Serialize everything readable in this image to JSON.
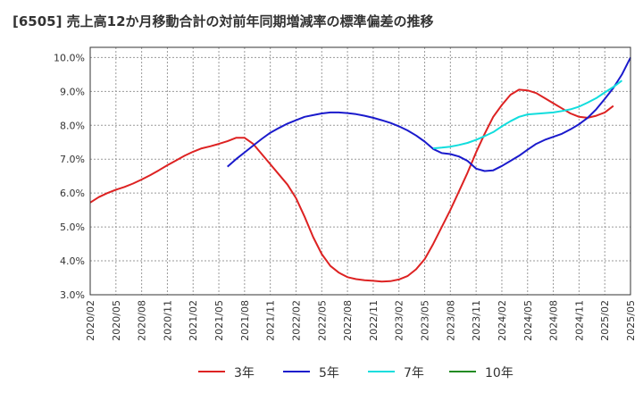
{
  "chart_data": {
    "type": "line",
    "title": "[6505]  売上高12か月移動合計の対前年同期増減率の標準偏差の推移",
    "xlabel": "",
    "ylabel": "",
    "ylim": [
      3.0,
      10.3
    ],
    "y_ticks": [
      "3.0%",
      "4.0%",
      "5.0%",
      "6.0%",
      "7.0%",
      "8.0%",
      "9.0%",
      "10.0%"
    ],
    "y_tick_values": [
      3,
      4,
      5,
      6,
      7,
      8,
      9,
      10
    ],
    "x_ticks": [
      "2020/02",
      "2020/05",
      "2020/08",
      "2020/11",
      "2021/02",
      "2021/05",
      "2021/08",
      "2021/11",
      "2022/02",
      "2022/05",
      "2022/08",
      "2022/11",
      "2023/02",
      "2023/05",
      "2023/08",
      "2023/11",
      "2024/02",
      "2024/05",
      "2024/08",
      "2024/11",
      "2025/02",
      "2025/05"
    ],
    "grid": true,
    "legend_position": "bottom",
    "series": [
      {
        "name": "3年",
        "color": "#dd2222",
        "points": [
          [
            "2020/02",
            5.72
          ],
          [
            "2020/03",
            5.88
          ],
          [
            "2020/04",
            6.0
          ],
          [
            "2020/05",
            6.1
          ],
          [
            "2020/06",
            6.18
          ],
          [
            "2020/07",
            6.28
          ],
          [
            "2020/08",
            6.4
          ],
          [
            "2020/09",
            6.53
          ],
          [
            "2020/10",
            6.67
          ],
          [
            "2020/11",
            6.82
          ],
          [
            "2020/12",
            6.96
          ],
          [
            "2021/01",
            7.1
          ],
          [
            "2021/02",
            7.22
          ],
          [
            "2021/03",
            7.32
          ],
          [
            "2021/04",
            7.38
          ],
          [
            "2021/05",
            7.45
          ],
          [
            "2021/06",
            7.53
          ],
          [
            "2021/07",
            7.63
          ],
          [
            "2021/08",
            7.63
          ],
          [
            "2021/09",
            7.45
          ],
          [
            "2021/10",
            7.15
          ],
          [
            "2021/11",
            6.85
          ],
          [
            "2021/12",
            6.55
          ],
          [
            "2022/01",
            6.25
          ],
          [
            "2022/02",
            5.85
          ],
          [
            "2022/03",
            5.3
          ],
          [
            "2022/04",
            4.7
          ],
          [
            "2022/05",
            4.2
          ],
          [
            "2022/06",
            3.85
          ],
          [
            "2022/07",
            3.65
          ],
          [
            "2022/08",
            3.52
          ],
          [
            "2022/09",
            3.46
          ],
          [
            "2022/10",
            3.43
          ],
          [
            "2022/11",
            3.41
          ],
          [
            "2022/12",
            3.39
          ],
          [
            "2023/01",
            3.4
          ],
          [
            "2023/02",
            3.45
          ],
          [
            "2023/03",
            3.55
          ],
          [
            "2023/04",
            3.75
          ],
          [
            "2023/05",
            4.05
          ],
          [
            "2023/06",
            4.5
          ],
          [
            "2023/07",
            5.0
          ],
          [
            "2023/08",
            5.5
          ],
          [
            "2023/09",
            6.05
          ],
          [
            "2023/10",
            6.6
          ],
          [
            "2023/11",
            7.2
          ],
          [
            "2023/12",
            7.75
          ],
          [
            "2024/01",
            8.25
          ],
          [
            "2024/02",
            8.6
          ],
          [
            "2024/03",
            8.9
          ],
          [
            "2024/04",
            9.05
          ],
          [
            "2024/05",
            9.03
          ],
          [
            "2024/06",
            8.95
          ],
          [
            "2024/07",
            8.8
          ],
          [
            "2024/08",
            8.65
          ],
          [
            "2024/09",
            8.5
          ],
          [
            "2024/10",
            8.35
          ],
          [
            "2024/11",
            8.25
          ],
          [
            "2024/12",
            8.22
          ],
          [
            "2025/01",
            8.28
          ],
          [
            "2025/02",
            8.38
          ],
          [
            "2025/03",
            8.57
          ]
        ]
      },
      {
        "name": "5年",
        "color": "#1a1acc",
        "points": [
          [
            "2021/06",
            6.78
          ],
          [
            "2021/07",
            7.0
          ],
          [
            "2021/08",
            7.2
          ],
          [
            "2021/09",
            7.4
          ],
          [
            "2021/10",
            7.6
          ],
          [
            "2021/11",
            7.78
          ],
          [
            "2021/12",
            7.92
          ],
          [
            "2022/01",
            8.05
          ],
          [
            "2022/02",
            8.15
          ],
          [
            "2022/03",
            8.25
          ],
          [
            "2022/04",
            8.3
          ],
          [
            "2022/05",
            8.35
          ],
          [
            "2022/06",
            8.38
          ],
          [
            "2022/07",
            8.38
          ],
          [
            "2022/08",
            8.36
          ],
          [
            "2022/09",
            8.33
          ],
          [
            "2022/10",
            8.28
          ],
          [
            "2022/11",
            8.22
          ],
          [
            "2022/12",
            8.15
          ],
          [
            "2023/01",
            8.07
          ],
          [
            "2023/02",
            7.97
          ],
          [
            "2023/03",
            7.85
          ],
          [
            "2023/04",
            7.7
          ],
          [
            "2023/05",
            7.52
          ],
          [
            "2023/06",
            7.3
          ],
          [
            "2023/07",
            7.18
          ],
          [
            "2023/08",
            7.15
          ],
          [
            "2023/09",
            7.08
          ],
          [
            "2023/10",
            6.95
          ],
          [
            "2023/11",
            6.72
          ],
          [
            "2023/12",
            6.65
          ],
          [
            "2024/01",
            6.67
          ],
          [
            "2024/02",
            6.8
          ],
          [
            "2024/03",
            6.95
          ],
          [
            "2024/04",
            7.1
          ],
          [
            "2024/05",
            7.28
          ],
          [
            "2024/06",
            7.45
          ],
          [
            "2024/07",
            7.57
          ],
          [
            "2024/08",
            7.66
          ],
          [
            "2024/09",
            7.75
          ],
          [
            "2024/10",
            7.88
          ],
          [
            "2024/11",
            8.03
          ],
          [
            "2024/12",
            8.22
          ],
          [
            "2025/01",
            8.47
          ],
          [
            "2025/02",
            8.78
          ],
          [
            "2025/03",
            9.1
          ],
          [
            "2025/04",
            9.5
          ],
          [
            "2025/05",
            10.0
          ]
        ]
      },
      {
        "name": "7年",
        "color": "#11dddd",
        "points": [
          [
            "2023/06",
            7.32
          ],
          [
            "2023/07",
            7.34
          ],
          [
            "2023/08",
            7.37
          ],
          [
            "2023/09",
            7.42
          ],
          [
            "2023/10",
            7.48
          ],
          [
            "2023/11",
            7.57
          ],
          [
            "2023/12",
            7.68
          ],
          [
            "2024/01",
            7.8
          ],
          [
            "2024/02",
            7.97
          ],
          [
            "2024/03",
            8.12
          ],
          [
            "2024/04",
            8.25
          ],
          [
            "2024/05",
            8.32
          ],
          [
            "2024/06",
            8.34
          ],
          [
            "2024/07",
            8.36
          ],
          [
            "2024/08",
            8.38
          ],
          [
            "2024/09",
            8.42
          ],
          [
            "2024/10",
            8.47
          ],
          [
            "2024/11",
            8.55
          ],
          [
            "2024/12",
            8.67
          ],
          [
            "2025/01",
            8.8
          ],
          [
            "2025/02",
            8.97
          ],
          [
            "2025/03",
            9.13
          ],
          [
            "2025/04",
            9.32
          ]
        ]
      },
      {
        "name": "10年",
        "color": "#228B22",
        "points": []
      }
    ]
  }
}
